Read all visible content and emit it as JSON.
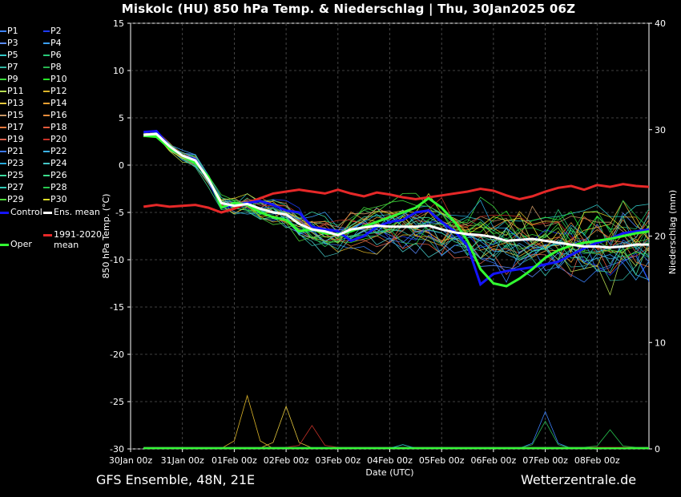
{
  "header": {
    "title": "Miskolc  (HU)  850 hPa Temp. & Niederschlag | Thu, 30Jan2025 06Z"
  },
  "footer": {
    "model": "GFS Ensemble, 48N, 21E",
    "source": "Wetterzentrale.de"
  },
  "legend": {
    "members": [
      {
        "label": "P1",
        "color": "#3c82ff"
      },
      {
        "label": "P2",
        "color": "#1e3cff"
      },
      {
        "label": "P3",
        "color": "#5a8cff"
      },
      {
        "label": "P4",
        "color": "#3ca0ff"
      },
      {
        "label": "P5",
        "color": "#32c8c8"
      },
      {
        "label": "P6",
        "color": "#28c878"
      },
      {
        "label": "P7",
        "color": "#32b4a0"
      },
      {
        "label": "P8",
        "color": "#28b450"
      },
      {
        "label": "P9",
        "color": "#3cdc3c"
      },
      {
        "label": "P10",
        "color": "#28e628"
      },
      {
        "label": "P11",
        "color": "#b4dc50"
      },
      {
        "label": "P12",
        "color": "#dcb428"
      },
      {
        "label": "P13",
        "color": "#e6c83c"
      },
      {
        "label": "P14",
        "color": "#f0a032"
      },
      {
        "label": "P15",
        "color": "#c89664"
      },
      {
        "label": "P16",
        "color": "#e68c3c"
      },
      {
        "label": "P17",
        "color": "#e6783c"
      },
      {
        "label": "P18",
        "color": "#e65a3c"
      },
      {
        "label": "P19",
        "color": "#dc6450"
      },
      {
        "label": "P20",
        "color": "#c83228"
      },
      {
        "label": "P21",
        "color": "#3c78f0"
      },
      {
        "label": "P22",
        "color": "#3cb4f0"
      },
      {
        "label": "P23",
        "color": "#28aadc"
      },
      {
        "label": "P24",
        "color": "#46c8c8"
      },
      {
        "label": "P25",
        "color": "#3cdca0"
      },
      {
        "label": "P26",
        "color": "#3cdc8c"
      },
      {
        "label": "P27",
        "color": "#32c8b4"
      },
      {
        "label": "P28",
        "color": "#28c850"
      },
      {
        "label": "P29",
        "color": "#50dc3c"
      },
      {
        "label": "P30",
        "color": "#dcdc28"
      }
    ],
    "control": {
      "label": "Control",
      "color": "#1414ff"
    },
    "ens_mean": {
      "label": "Ens. mean",
      "color": "#ffffff"
    },
    "climate": {
      "label_line1": "1991-2020",
      "label_line2": "mean",
      "color": "#e62828"
    },
    "oper": {
      "label": "Oper",
      "color": "#32ff32"
    }
  },
  "chart_data": {
    "type": "line",
    "title": "Miskolc  (HU)  850 hPa Temp. & Niederschlag | Thu, 30Jan2025 06Z",
    "xlabel": "Date (UTC)",
    "ylabel": "850 hPa Temp. (°C)",
    "y2label": "Niederschlag (mm)",
    "ylim": [
      -30,
      15
    ],
    "y2lim": [
      0,
      40
    ],
    "yticks": [
      "15",
      "10",
      "5",
      "0",
      "-5",
      "-10",
      "-15",
      "-20",
      "-25",
      "-30"
    ],
    "y2ticks": [
      "40",
      "30",
      "20",
      "10",
      "0"
    ],
    "xlim": [
      0,
      240
    ],
    "xticks": [
      {
        "hour": 0,
        "label": "30Jan 00z"
      },
      {
        "hour": 24,
        "label": "31Jan 00z"
      },
      {
        "hour": 48,
        "label": "01Feb 00z"
      },
      {
        "hour": 72,
        "label": "02Feb 00z"
      },
      {
        "hour": 96,
        "label": "03Feb 00z"
      },
      {
        "hour": 120,
        "label": "04Feb 00z"
      },
      {
        "hour": 144,
        "label": "05Feb 00z"
      },
      {
        "hour": 168,
        "label": "06Feb 00z"
      },
      {
        "hour": 192,
        "label": "07Feb 00z"
      },
      {
        "hour": 216,
        "label": "08Feb 00z"
      }
    ],
    "grid": true,
    "hours": [
      6,
      12,
      18,
      24,
      30,
      36,
      42,
      48,
      54,
      60,
      66,
      72,
      78,
      84,
      90,
      96,
      102,
      108,
      114,
      120,
      126,
      132,
      138,
      144,
      150,
      156,
      162,
      168,
      174,
      180,
      186,
      192,
      198,
      204,
      210,
      216,
      222,
      228,
      234,
      240
    ],
    "series": {
      "climate_mean": [
        -4.4,
        -4.2,
        -4.4,
        -4.3,
        -4.2,
        -4.5,
        -5.0,
        -4.6,
        -4.0,
        -3.5,
        -3.0,
        -2.8,
        -2.6,
        -2.8,
        -3.0,
        -2.6,
        -3.0,
        -3.3,
        -2.9,
        -3.1,
        -3.4,
        -3.6,
        -3.4,
        -3.2,
        -3.0,
        -2.8,
        -2.5,
        -2.7,
        -3.2,
        -3.6,
        -3.3,
        -2.8,
        -2.4,
        -2.2,
        -2.6,
        -2.1,
        -2.3,
        -2.0,
        -2.2,
        -2.3
      ],
      "ens_mean": [
        3.2,
        3.3,
        2.0,
        1.0,
        0.5,
        -1.5,
        -4.0,
        -4.3,
        -4.1,
        -4.6,
        -5.0,
        -5.2,
        -6.2,
        -6.8,
        -7.0,
        -7.4,
        -6.8,
        -6.6,
        -6.4,
        -6.5,
        -6.5,
        -6.5,
        -6.4,
        -6.8,
        -7.1,
        -7.3,
        -7.4,
        -7.6,
        -8.0,
        -7.9,
        -7.8,
        -8.0,
        -8.2,
        -8.4,
        -8.6,
        -8.6,
        -8.7,
        -8.6,
        -8.4,
        -8.4
      ],
      "control": [
        3.5,
        3.6,
        2.0,
        1.0,
        0.6,
        -1.5,
        -4.5,
        -4.2,
        -4.0,
        -3.8,
        -4.2,
        -4.8,
        -5.0,
        -6.5,
        -6.8,
        -7.0,
        -8.0,
        -7.5,
        -6.5,
        -6.0,
        -5.8,
        -5.0,
        -4.8,
        -6.0,
        -7.0,
        -8.5,
        -12.6,
        -11.5,
        -11.2,
        -11.0,
        -10.8,
        -10.5,
        -10.2,
        -9.5,
        -8.8,
        -8.2,
        -7.8,
        -7.2,
        -7.0,
        -6.8
      ],
      "oper": [
        3.1,
        3.0,
        1.8,
        1.0,
        0.2,
        -1.2,
        -4.5,
        -4.0,
        -4.2,
        -5.0,
        -5.5,
        -5.8,
        -7.0,
        -6.8,
        -7.2,
        -7.3,
        -7.0,
        -6.5,
        -6.0,
        -5.5,
        -5.0,
        -4.5,
        -3.5,
        -4.5,
        -6.0,
        -8.0,
        -11.0,
        -12.5,
        -12.8,
        -12.0,
        -11.0,
        -9.8,
        -9.0,
        -8.5,
        -8.2,
        -8.0,
        -7.8,
        -7.5,
        -7.2,
        -7.0
      ]
    },
    "precip_notes": "Thin per-member precipitation traces near 0 mm with spikes near 01Feb 12z (~5 mm), 02Feb 06z (~4 mm), 07Feb (~3 mm)"
  }
}
